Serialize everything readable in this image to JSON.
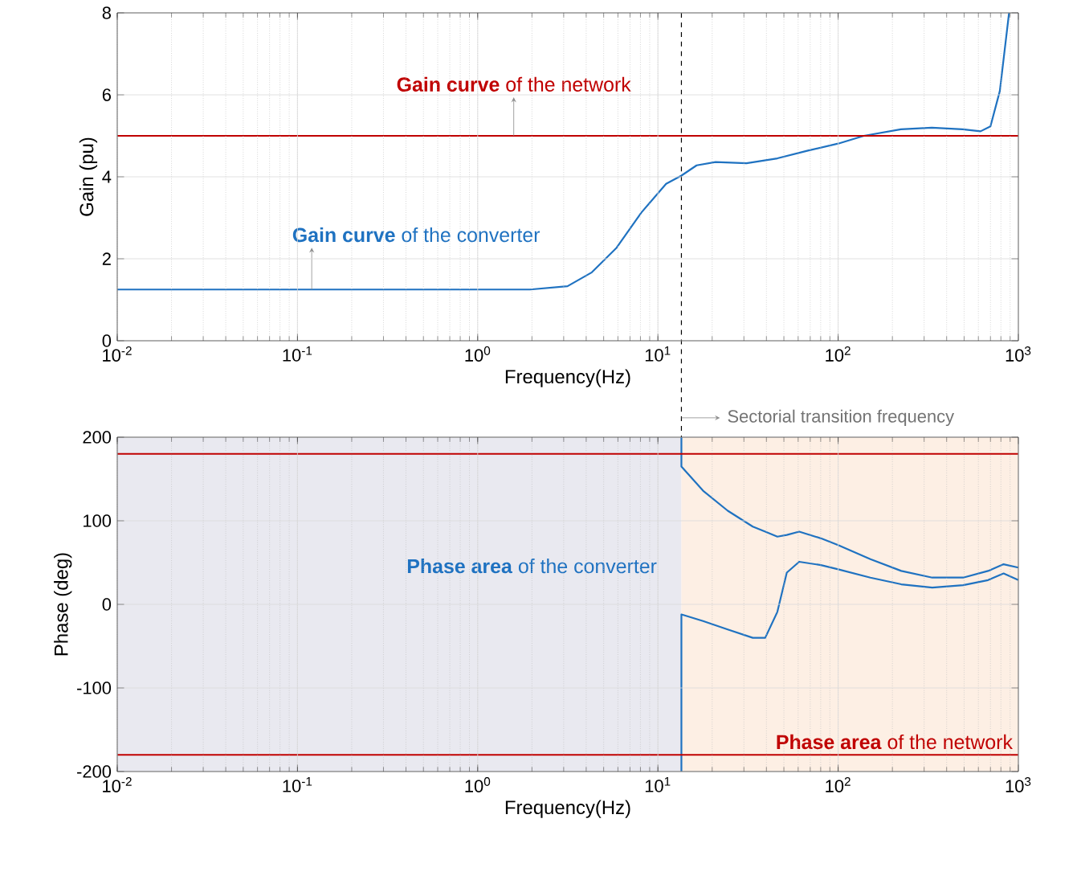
{
  "chart_data": [
    {
      "type": "line",
      "xlabel": "Frequency(Hz)",
      "ylabel": "Gain (pu)",
      "log": "x",
      "grid": true,
      "xlim": [
        0.01,
        1000
      ],
      "ylim": [
        0,
        8
      ],
      "xticks": [
        {
          "value": 0.01,
          "label": "10$^{-2}$"
        },
        {
          "value": 0.1,
          "label": "10$^{-1}$"
        },
        {
          "value": 1,
          "label": "10$^{0}$"
        },
        {
          "value": 10,
          "label": "10$^{1}$"
        },
        {
          "value": 100,
          "label": "10$^{2}$"
        },
        {
          "value": 1000,
          "label": "10$^{3}$"
        }
      ],
      "yticks": [
        0,
        2,
        4,
        6,
        8
      ],
      "series": [
        {
          "color": "#1f72c1",
          "x": [
            0.01,
            1,
            1.95,
            3.15,
            4.3,
            5.9,
            8.1,
            11.1,
            13.5,
            16.4,
            20.9,
            31,
            46,
            68,
            100,
            139,
            223,
            331,
            490,
            617,
            700,
            789,
            888
          ],
          "values": [
            1.25,
            1.25,
            1.25,
            1.33,
            1.67,
            2.27,
            3.13,
            3.83,
            4.03,
            4.28,
            4.36,
            4.33,
            4.45,
            4.64,
            4.81,
            5.0,
            5.16,
            5.2,
            5.16,
            5.11,
            5.23,
            6.09,
            8.0
          ]
        }
      ],
      "ref_lines": [
        {
          "axis": "y",
          "value": 5,
          "label": "**Gain curve** of the network",
          "color": "#c00000",
          "line_style": "solid"
        },
        {
          "axis": "x",
          "value": 13.5,
          "label": "Sectorial transition frequency",
          "color": "#000000",
          "line_style": "dashed"
        }
      ],
      "annotations": [
        {
          "text": "**Gain curve** of the converter",
          "x": 0.12,
          "y": 1.25
        }
      ]
    },
    {
      "type": "line",
      "xlabel": "Frequency(Hz)",
      "ylabel": "Phase (deg)",
      "log": "x",
      "grid": true,
      "xlim": [
        0.01,
        1000
      ],
      "ylim": [
        -200,
        200
      ],
      "xticks": [
        {
          "value": 0.01,
          "label": "10$^{-2}$"
        },
        {
          "value": 0.1,
          "label": "10$^{-1}$"
        },
        {
          "value": 1,
          "label": "10$^{0}$"
        },
        {
          "value": 10,
          "label": "10$^{1}$"
        },
        {
          "value": 100,
          "label": "10$^{2}$"
        },
        {
          "value": 1000,
          "label": "10$^{3}$"
        }
      ],
      "yticks": [
        -200,
        -100,
        0,
        100,
        200
      ],
      "series": [
        {
          "color": "#1f72c1",
          "x": [
            13.5,
            13.5,
            17.8,
            24.4,
            33.6,
            39.4,
            46,
            51.9,
            60.8,
            80.2,
            100,
            151,
            224,
            333,
            494,
            679,
            828,
            1000
          ],
          "values": [
            200,
            165,
            136,
            112,
            93,
            87,
            81,
            83,
            87,
            79,
            71,
            54,
            40,
            32,
            32,
            40,
            48,
            44
          ],
          "name": null
        },
        {
          "color": "#1f72c1",
          "x": [
            13.5,
            13.5,
            17.8,
            24.4,
            33.6,
            39.4,
            46,
            51.9,
            60.8,
            80.2,
            100,
            151,
            224,
            333,
            494,
            679,
            828,
            1000
          ],
          "values": [
            -200,
            -12,
            -20,
            -30,
            -40,
            -40,
            -9,
            38,
            51,
            47,
            42,
            32,
            24,
            20,
            23,
            29,
            37,
            29
          ]
        }
      ],
      "ref_lines": [
        {
          "axis": "y",
          "value": 180,
          "color": "#c00000",
          "line_style": "solid"
        },
        {
          "axis": "y",
          "value": -180,
          "color": "#c00000",
          "line_style": "solid"
        }
      ],
      "bands": [
        {
          "axis": "x",
          "from": 0.01,
          "to": 13.5,
          "color": "#e9e9f0"
        },
        {
          "axis": "x",
          "from": 13.5,
          "to": 1000,
          "color": "#fdefe4",
          "label": "**Phase area** of the network"
        }
      ],
      "annotations": [
        "**Phase area** of the converter"
      ]
    }
  ]
}
